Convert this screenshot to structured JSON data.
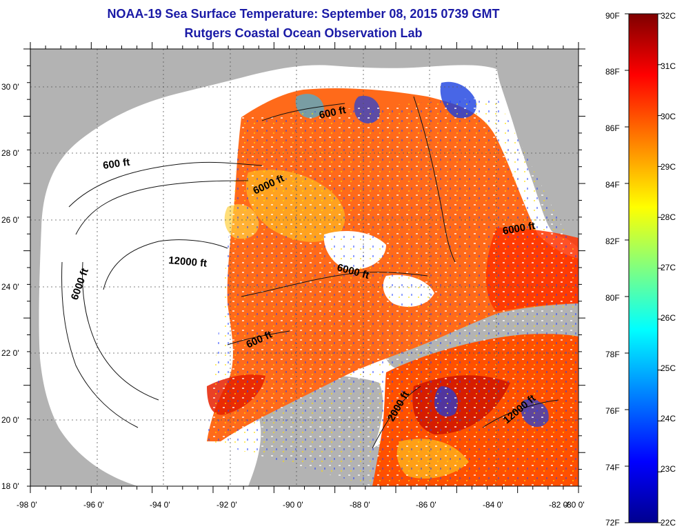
{
  "header": {
    "title": "NOAA-19 Sea Surface Temperature:  September 08, 2015 0739 GMT",
    "subtitle": "Rutgers Coastal Ocean Observation Lab"
  },
  "map": {
    "lon_ticks": [
      "-98 0'",
      "-96 0'",
      "-94 0'",
      "-92 0'",
      "-90 0'",
      "-88 0'",
      "-86 0'",
      "-84 0'",
      "-82 0'",
      "-80 0'"
    ],
    "lat_ticks": [
      "30 0'",
      "28 0'",
      "26 0'",
      "24 0'",
      "22 0'",
      "20 0'",
      "18 0'"
    ],
    "contour_labels": [
      "600 ft",
      "600 ft",
      "6000 ft",
      "6000 ft",
      "12000 ft",
      "6000 ft",
      "600 ft",
      "6000 ft",
      "12000 ft",
      "2000 ft"
    ],
    "colors": {
      "land": "#b3b3b3",
      "no_data": "#ffffff",
      "grid": "#555555"
    }
  },
  "colorbar": {
    "f_labels": [
      "90F",
      "88F",
      "86F",
      "84F",
      "82F",
      "80F",
      "78F",
      "76F",
      "74F",
      "72F"
    ],
    "c_labels": [
      "32C",
      "31C",
      "30C",
      "29C",
      "28C",
      "27C",
      "26C",
      "25C",
      "24C",
      "23C",
      "22C"
    ],
    "stops": [
      "#7f0000",
      "#ff0000",
      "#ff8000",
      "#ffff00",
      "#80ff80",
      "#00ffff",
      "#0080ff",
      "#0000ff",
      "#00008f"
    ]
  }
}
